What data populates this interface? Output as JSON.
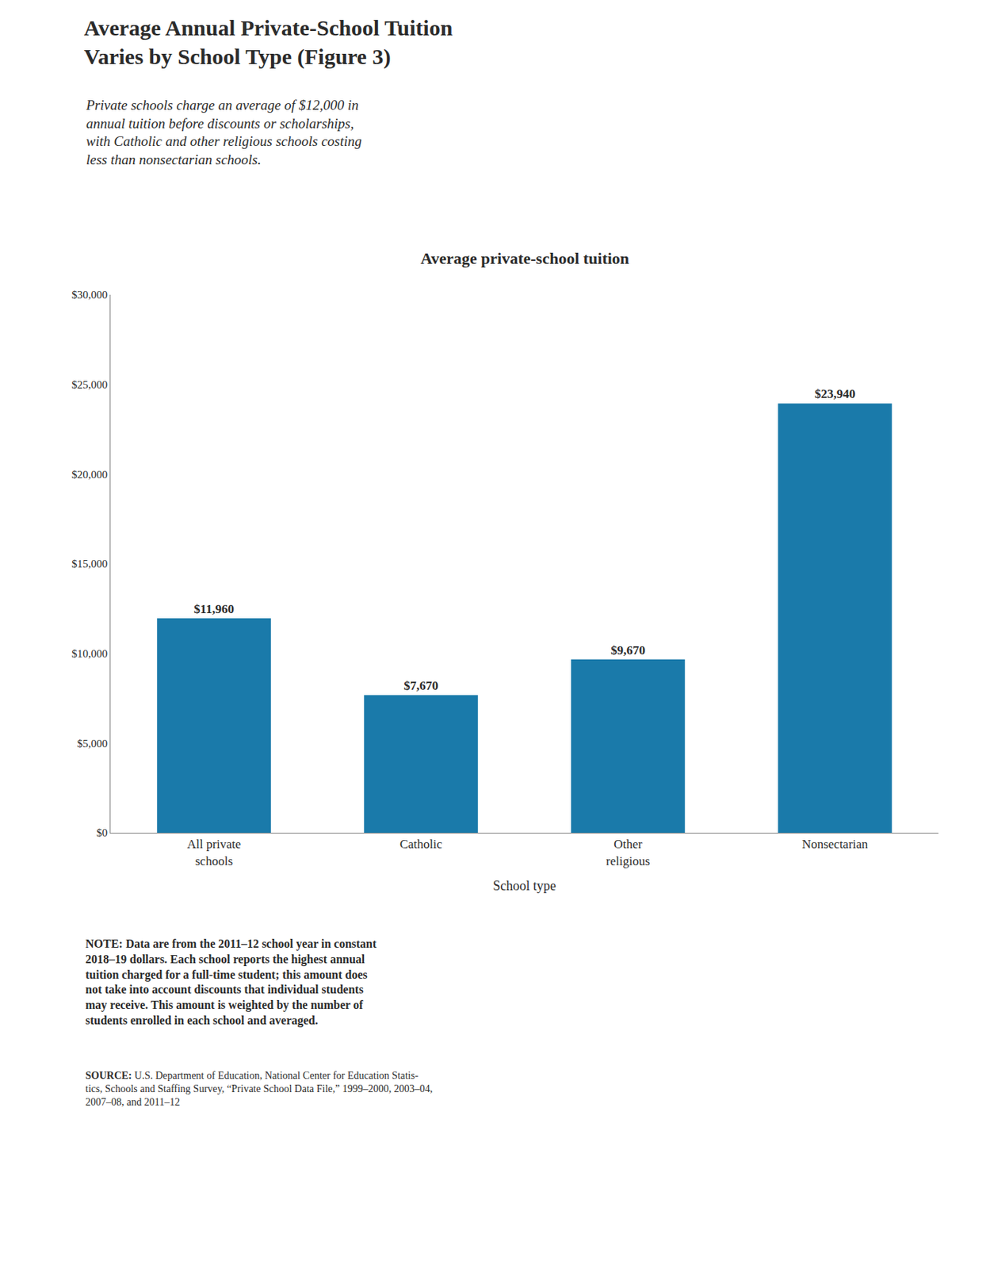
{
  "chart_data": {
    "type": "bar",
    "title": "Average Annual Private-School Tuition\nVaries by School Type (Figure 3)",
    "subtitle": "Private schools charge an average of $12,000 in\nannual tuition before discounts or scholarships,\nwith Catholic and other religious schools costing\nless than nonsectarian schools.",
    "annotations": [
      "Average private-school tuition",
      "NOTE: Data are from the 2011–12 school year in constant\n2018–19 dollars. Each school reports the highest annual\ntuition charged for a full-time student; this amount does\nnot take into account discounts that individual students\nmay receive. This amount is weighted by the number of\nstudents enrolled in each school and averaged.",
      "SOURCE:",
      " U.S. Department of Education, National Center for Education Statis-\ntics, Schools and Staffing Survey, “Private School Data File,” 1999–2000, 2003–04,\n2007–08, and 2011–12"
    ],
    "xlabel": "School type",
    "categories": [
      "All private\nschools",
      "Catholic",
      "Other\nreligious",
      "Nonsectarian"
    ],
    "values": [
      11960,
      7670,
      9670,
      23940
    ],
    "value_labels": [
      "$11,960",
      "$7,670",
      "$9,670",
      "$23,940"
    ],
    "data_labels": true,
    "color": "#1a7aaa",
    "ylim": [
      0,
      30000
    ],
    "yticks": [
      {
        "value": 0,
        "label": "$0"
      },
      {
        "value": 5000,
        "label": "$5,000"
      },
      {
        "value": 10000,
        "label": "$10,000"
      },
      {
        "value": 15000,
        "label": "$15,000"
      },
      {
        "value": 20000,
        "label": "$20,000"
      },
      {
        "value": 25000,
        "label": "$25,000"
      },
      {
        "value": 30000,
        "label": "$30,000"
      }
    ],
    "grid": false
  }
}
